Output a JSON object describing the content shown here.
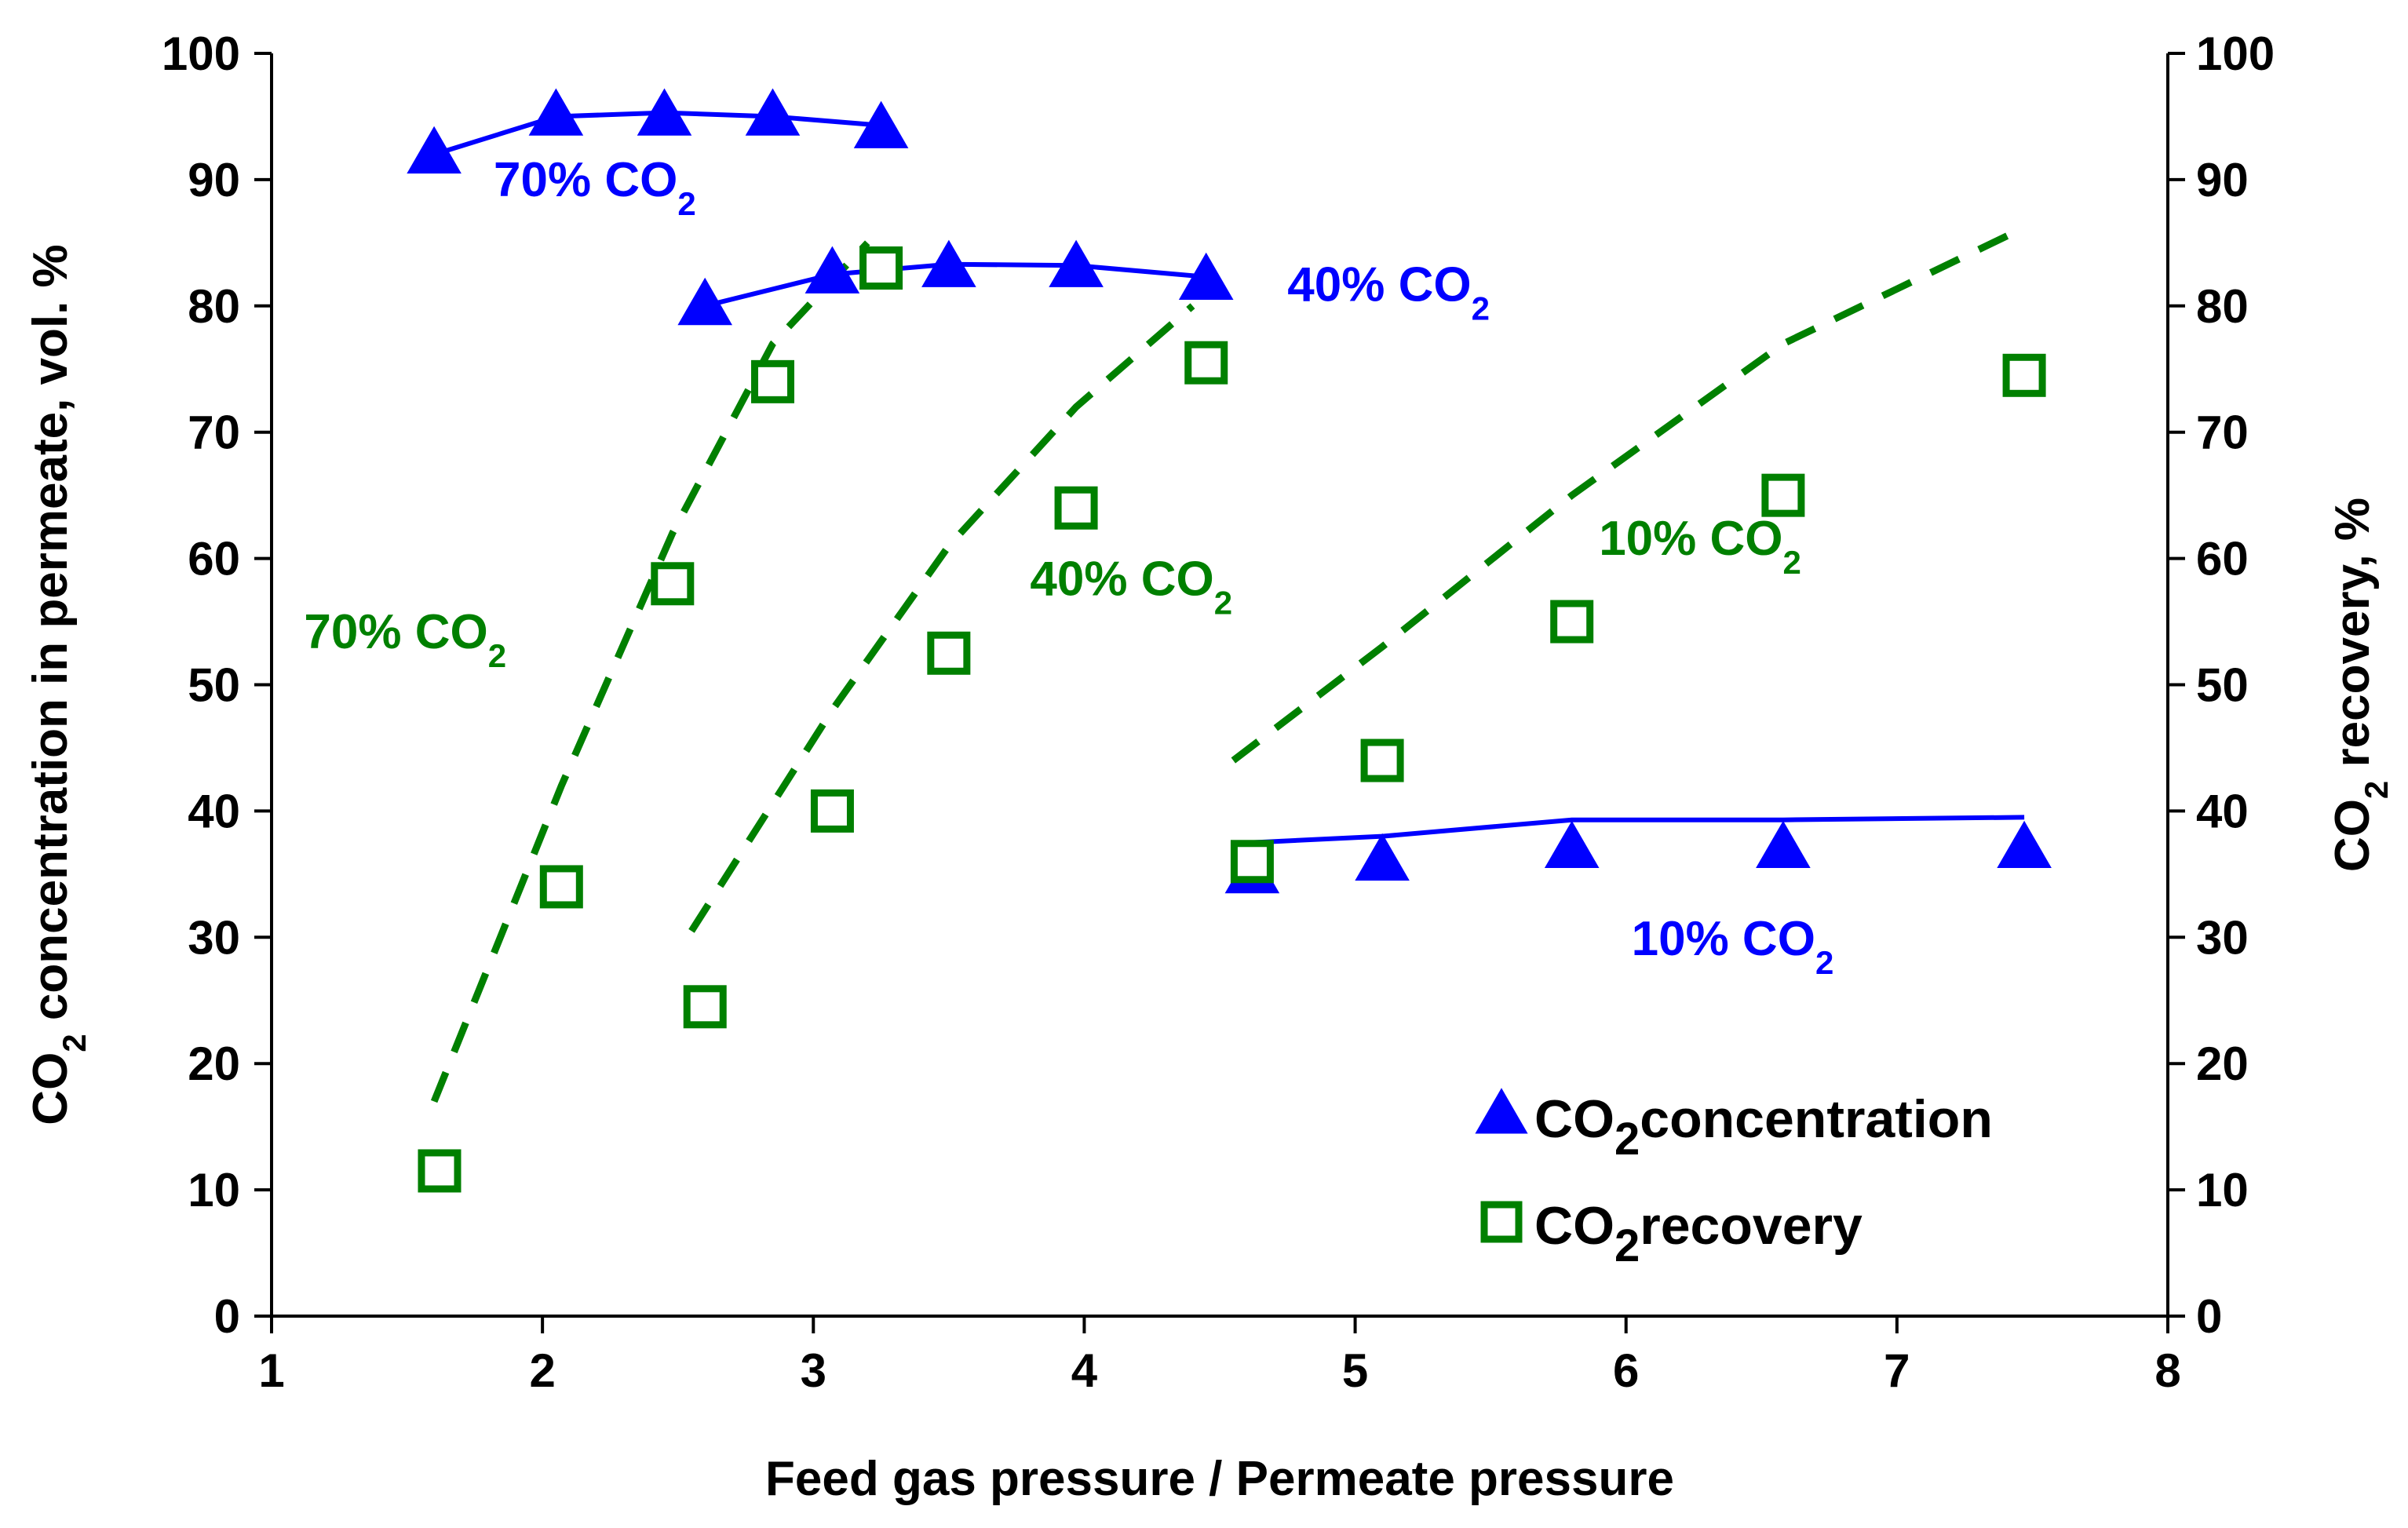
{
  "chart_data": {
    "type": "scatter",
    "title": "",
    "xlabel": "Feed gas pressure / Permeate pressure",
    "ylabel_left": {
      "prefix": "CO",
      "sub": "2",
      "suffix": " concentration in permeate, vol. %"
    },
    "ylabel_right": {
      "prefix": "CO",
      "sub": "2",
      "suffix": " recovery, %"
    },
    "xlim": [
      1,
      8
    ],
    "ylim": [
      0,
      100
    ],
    "xticks": [
      "1",
      "2",
      "3",
      "4",
      "5",
      "6",
      "7",
      "8"
    ],
    "yticks_left": [
      "0",
      "10",
      "20",
      "30",
      "40",
      "50",
      "60",
      "70",
      "80",
      "90",
      "100"
    ],
    "yticks_right": [
      "0",
      "10",
      "20",
      "30",
      "40",
      "50",
      "60",
      "70",
      "80",
      "90",
      "100"
    ],
    "colors": {
      "concentration": "#0000ff",
      "recovery": "#008000"
    },
    "series": [
      {
        "name": "concentration 70% CO2",
        "kind": "triangle",
        "color": "#0000ff",
        "x": [
          1.6,
          2.05,
          2.45,
          2.85,
          3.25
        ],
        "y": [
          92,
          95,
          95,
          95,
          94
        ]
      },
      {
        "name": "concentration 40% CO2",
        "kind": "triangle",
        "color": "#0000ff",
        "x": [
          2.6,
          3.07,
          3.5,
          3.97,
          4.45
        ],
        "y": [
          80,
          82.5,
          83,
          83,
          82
        ]
      },
      {
        "name": "concentration 10% CO2",
        "kind": "triangle",
        "color": "#0000ff",
        "x": [
          4.62,
          5.1,
          5.8,
          6.58,
          7.47
        ],
        "y": [
          35,
          36,
          37,
          37,
          37
        ]
      },
      {
        "name": "recovery 70% CO2",
        "kind": "square",
        "color": "#008000",
        "x": [
          1.62,
          2.07,
          2.48,
          2.85,
          3.25
        ],
        "y": [
          11.5,
          34,
          58,
          74,
          83
        ]
      },
      {
        "name": "recovery 40% CO2",
        "kind": "square",
        "color": "#008000",
        "x": [
          2.6,
          3.07,
          3.5,
          3.97,
          4.45
        ],
        "y": [
          24.5,
          40,
          52.5,
          64,
          75.5
        ]
      },
      {
        "name": "recovery 10% CO2",
        "kind": "square",
        "color": "#008000",
        "x": [
          4.62,
          5.1,
          5.8,
          6.58,
          7.47
        ],
        "y": [
          36,
          44,
          55,
          65,
          74.5
        ]
      }
    ],
    "model_lines": [
      {
        "name": "concentration model 70% CO2",
        "style": "solid",
        "color": "#0000ff",
        "x": [
          1.6,
          2.05,
          2.45,
          2.85,
          3.25
        ],
        "y": [
          92,
          95,
          95.3,
          95,
          94.3
        ]
      },
      {
        "name": "concentration model 40% CO2",
        "style": "solid",
        "color": "#0000ff",
        "x": [
          2.6,
          3.07,
          3.5,
          3.97,
          4.45
        ],
        "y": [
          80,
          82.5,
          83.3,
          83.2,
          82.3
        ]
      },
      {
        "name": "concentration model 10% CO2",
        "style": "solid",
        "color": "#0000ff",
        "x": [
          4.62,
          5.1,
          5.8,
          6.58,
          7.47
        ],
        "y": [
          37.5,
          38,
          39.3,
          39.3,
          39.5
        ]
      },
      {
        "name": "recovery model 70% CO2",
        "style": "dashed",
        "color": "#008000",
        "x": [
          1.6,
          2.07,
          2.48,
          2.85,
          3.2
        ],
        "y": [
          17,
          42,
          62,
          77,
          85
        ]
      },
      {
        "name": "recovery model 40% CO2",
        "style": "dashed",
        "color": "#008000",
        "x": [
          2.55,
          3.07,
          3.5,
          3.97,
          4.4
        ],
        "y": [
          30.5,
          48,
          61,
          72,
          80
        ]
      },
      {
        "name": "recovery model 10% CO2",
        "style": "dashed",
        "color": "#008000",
        "x": [
          4.55,
          5.1,
          5.8,
          6.58,
          7.45
        ],
        "y": [
          44,
          53,
          65,
          77,
          86
        ]
      }
    ],
    "annotations": [
      {
        "prefix": "70% CO",
        "sub": "2",
        "color": "#0000ff",
        "x": 1.82,
        "y": 88.7
      },
      {
        "prefix": "40% CO",
        "sub": "2",
        "color": "#0000ff",
        "x": 4.75,
        "y": 80.4
      },
      {
        "prefix": "10% CO",
        "sub": "2",
        "color": "#0000ff",
        "x": 6.02,
        "y": 28.6
      },
      {
        "prefix": "70% CO",
        "sub": "2",
        "color": "#008000",
        "x": 1.12,
        "y": 52.9
      },
      {
        "prefix": "40% CO",
        "sub": "2",
        "color": "#008000",
        "x": 3.8,
        "y": 57.1
      },
      {
        "prefix": "10% CO",
        "sub": "2",
        "color": "#008000",
        "x": 5.9,
        "y": 60.3
      }
    ],
    "legend": {
      "position": "bottom-right",
      "items": [
        {
          "marker": "triangle",
          "color": "#0000ff",
          "prefix": "CO",
          "sub": "2",
          "suffix": "concentration"
        },
        {
          "marker": "square",
          "color": "#008000",
          "prefix": "CO",
          "sub": "2",
          "suffix": "recovery"
        }
      ]
    }
  }
}
